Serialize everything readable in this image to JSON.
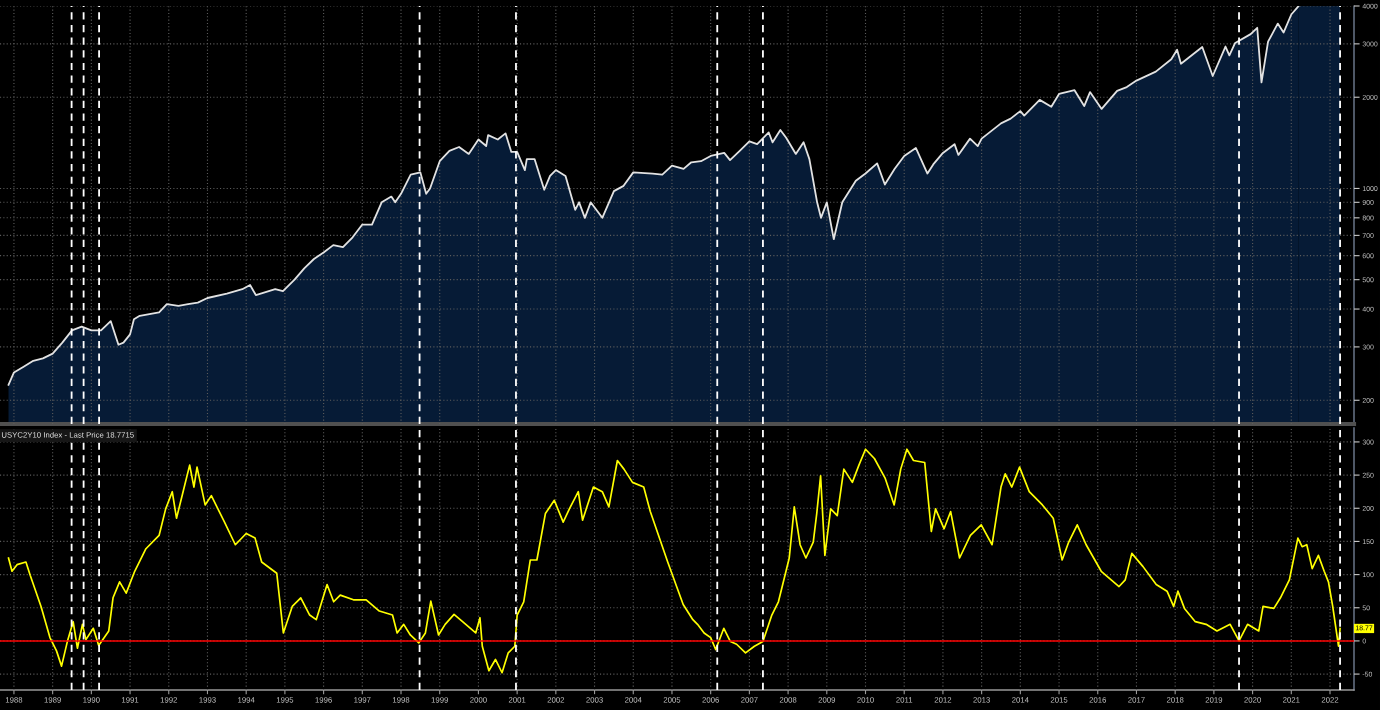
{
  "chart_data": [
    {
      "type": "area",
      "log": true,
      "grid": true,
      "tick_labels": "y",
      "color": "#061b36",
      "x": [
        1987.86,
        1988.0,
        1988.25,
        1988.5,
        1988.75,
        1989.0,
        1989.25,
        1989.5,
        1989.75,
        1990.0,
        1990.25,
        1990.5,
        1990.7,
        1990.83,
        1991.0,
        1991.1,
        1991.25,
        1991.5,
        1991.75,
        1991.95,
        1992.25,
        1992.5,
        1992.75,
        1993.0,
        1993.5,
        1993.9,
        1994.1,
        1994.25,
        1994.5,
        1994.75,
        1994.95,
        1995.25,
        1995.5,
        1995.75,
        1996.0,
        1996.25,
        1996.5,
        1996.75,
        1997.0,
        1997.25,
        1997.5,
        1997.75,
        1997.85,
        1998.0,
        1998.25,
        1998.5,
        1998.65,
        1998.75,
        1999.0,
        1999.25,
        1999.5,
        1999.75,
        2000.0,
        2000.2,
        2000.25,
        2000.5,
        2000.7,
        2000.85,
        2001.0,
        2001.2,
        2001.25,
        2001.45,
        2001.7,
        2001.85,
        2002.0,
        2002.25,
        2002.5,
        2002.6,
        2002.75,
        2002.9,
        2003.2,
        2003.5,
        2003.75,
        2004.0,
        2004.5,
        2004.75,
        2005.0,
        2005.3,
        2005.5,
        2005.75,
        2006.0,
        2006.35,
        2006.5,
        2006.75,
        2007.0,
        2007.2,
        2007.5,
        2007.6,
        2007.8,
        2007.95,
        2008.2,
        2008.4,
        2008.55,
        2008.75,
        2008.85,
        2009.0,
        2009.18,
        2009.4,
        2009.75,
        2010.0,
        2010.3,
        2010.5,
        2010.75,
        2011.0,
        2011.3,
        2011.6,
        2011.75,
        2012.0,
        2012.3,
        2012.4,
        2012.7,
        2012.9,
        2013.0,
        2013.5,
        2013.75,
        2014.0,
        2014.1,
        2014.5,
        2014.8,
        2015.0,
        2015.4,
        2015.65,
        2015.8,
        2016.1,
        2016.5,
        2016.75,
        2017.0,
        2017.5,
        2017.9,
        2018.05,
        2018.15,
        2018.7,
        2018.97,
        2019.3,
        2019.4,
        2019.55,
        2019.95,
        2020.12,
        2020.23,
        2020.4,
        2020.65,
        2020.8,
        2021.0,
        2021.19
      ],
      "series": [
        {
          "color": "#e2e2e2",
          "values": [
            225,
            247,
            258,
            270,
            275,
            285,
            310,
            340,
            350,
            340,
            340,
            365,
            305,
            310,
            330,
            370,
            380,
            385,
            390,
            415,
            410,
            415,
            420,
            435,
            450,
            465,
            480,
            445,
            455,
            465,
            458,
            500,
            545,
            585,
            615,
            650,
            640,
            690,
            760,
            760,
            900,
            940,
            900,
            960,
            1110,
            1130,
            960,
            1000,
            1230,
            1330,
            1370,
            1300,
            1450,
            1380,
            1500,
            1450,
            1520,
            1320,
            1320,
            1150,
            1250,
            1250,
            990,
            1100,
            1150,
            1100,
            850,
            900,
            800,
            900,
            800,
            980,
            1020,
            1130,
            1120,
            1110,
            1190,
            1160,
            1220,
            1230,
            1280,
            1310,
            1240,
            1330,
            1430,
            1400,
            1530,
            1420,
            1560,
            1470,
            1300,
            1420,
            1250,
            900,
            800,
            900,
            680,
            900,
            1060,
            1120,
            1210,
            1030,
            1160,
            1280,
            1360,
            1120,
            1200,
            1310,
            1400,
            1290,
            1460,
            1380,
            1460,
            1640,
            1700,
            1800,
            1740,
            1960,
            1860,
            2050,
            2110,
            1870,
            2080,
            1830,
            2100,
            2160,
            2270,
            2430,
            2670,
            2870,
            2580,
            2930,
            2350,
            2940,
            2750,
            3020,
            3230,
            3390,
            2240,
            3050,
            3500,
            3270,
            3750,
            4000
          ]
        }
      ],
      "xlim": [
        1987.64,
        2022.62
      ],
      "xticks": [
        1988,
        1989,
        1990,
        1991,
        1992,
        1993,
        1994,
        1995,
        1996,
        1997,
        1998,
        1999,
        2000,
        2001,
        2002,
        2003,
        2004,
        2005,
        2006,
        2007,
        2008,
        2009,
        2010,
        2011,
        2012,
        2013,
        2014,
        2015,
        2016,
        2017,
        2018,
        2019,
        2020,
        2021,
        2022
      ],
      "ylim": [
        167,
        4000
      ],
      "yticks": [
        200,
        300,
        400,
        500,
        600,
        700,
        800,
        900,
        1000,
        2000,
        3000,
        4000
      ],
      "bands": [
        {
          "axis": "x",
          "from": 2021.19,
          "to": 2022.26,
          "color": "#061b36"
        }
      ],
      "ref_lines": [
        {
          "axis": "x",
          "value": 1989.49,
          "color": "#ffffff",
          "line_style": "dashed"
        },
        {
          "axis": "x",
          "value": 1989.8,
          "color": "#ffffff",
          "line_style": "dashed"
        },
        {
          "axis": "x",
          "value": 1990.2,
          "color": "#ffffff",
          "line_style": "dashed"
        },
        {
          "axis": "x",
          "value": 1998.48,
          "color": "#ffffff",
          "line_style": "dashed"
        },
        {
          "axis": "x",
          "value": 2000.97,
          "color": "#ffffff",
          "line_style": "dashed"
        },
        {
          "axis": "x",
          "value": 2006.17,
          "color": "#ffffff",
          "line_style": "dashed"
        },
        {
          "axis": "x",
          "value": 2007.35,
          "color": "#ffffff",
          "line_style": "dashed"
        },
        {
          "axis": "x",
          "value": 2019.65,
          "color": "#ffffff",
          "line_style": "dashed"
        },
        {
          "axis": "x",
          "value": 2022.26,
          "color": "#ffffff",
          "line_style": "dashed"
        }
      ]
    },
    {
      "type": "line",
      "title": "USYC2Y10 Index - Last Price 18.7715",
      "grid": true,
      "color": "#ffff00",
      "x": [
        1987.86,
        1987.95,
        1988.08,
        1988.31,
        1988.42,
        1988.7,
        1988.93,
        1989.1,
        1989.23,
        1989.38,
        1989.53,
        1989.64,
        1989.77,
        1989.86,
        1990.05,
        1990.19,
        1990.45,
        1990.56,
        1990.73,
        1990.9,
        1991.12,
        1991.41,
        1991.75,
        1991.92,
        1992.09,
        1992.2,
        1992.37,
        1992.54,
        1992.65,
        1992.73,
        1992.94,
        1993.1,
        1993.44,
        1993.72,
        1994.0,
        1994.23,
        1994.4,
        1994.79,
        1994.96,
        1995.19,
        1995.41,
        1995.64,
        1995.81,
        1996.09,
        1996.26,
        1996.43,
        1996.77,
        1997.1,
        1997.44,
        1997.78,
        1997.9,
        1998.07,
        1998.24,
        1998.46,
        1998.63,
        1998.77,
        1998.97,
        1999.14,
        1999.37,
        1999.59,
        1999.93,
        2000.04,
        2000.1,
        2000.27,
        2000.44,
        2000.61,
        2000.77,
        2000.94,
        2001.0,
        2001.17,
        2001.34,
        2001.51,
        2001.73,
        2001.96,
        2002.19,
        2002.35,
        2002.58,
        2002.69,
        2002.97,
        2003.2,
        2003.37,
        2003.59,
        2003.76,
        2003.98,
        2004.27,
        2004.44,
        2004.89,
        2005.12,
        2005.29,
        2005.54,
        2005.66,
        2005.83,
        2006.0,
        2006.13,
        2006.34,
        2006.51,
        2006.67,
        2006.9,
        2007.13,
        2007.35,
        2007.58,
        2007.75,
        2007.92,
        2008.03,
        2008.16,
        2008.31,
        2008.46,
        2008.65,
        2008.74,
        2008.84,
        2008.95,
        2009.1,
        2009.27,
        2009.44,
        2009.66,
        2009.83,
        2010.0,
        2010.23,
        2010.51,
        2010.74,
        2010.91,
        2011.07,
        2011.24,
        2011.53,
        2011.7,
        2011.81,
        2012.03,
        2012.2,
        2012.43,
        2012.71,
        2012.99,
        2013.27,
        2013.5,
        2013.61,
        2013.78,
        2013.98,
        2014.23,
        2014.57,
        2014.85,
        2015.08,
        2015.25,
        2015.47,
        2015.7,
        2016.09,
        2016.55,
        2016.71,
        2016.88,
        2017.17,
        2017.51,
        2017.79,
        2017.96,
        2018.07,
        2018.24,
        2018.52,
        2018.8,
        2019.08,
        2019.42,
        2019.65,
        2019.87,
        2020.16,
        2020.27,
        2020.55,
        2020.72,
        2020.95,
        2021.17,
        2021.28,
        2021.4,
        2021.54,
        2021.7,
        2021.85,
        2021.96,
        2022.07,
        2022.22,
        2022.26
      ],
      "values": [
        125,
        105,
        115,
        119,
        99,
        52,
        5,
        -15,
        -38,
        -1,
        29,
        -11,
        25,
        2,
        19,
        -7,
        15,
        65,
        89,
        72,
        105,
        139,
        159,
        199,
        225,
        185,
        225,
        265,
        232,
        262,
        205,
        219,
        179,
        145,
        162,
        155,
        119,
        102,
        12,
        52,
        65,
        39,
        32,
        85,
        59,
        69,
        62,
        62,
        45,
        39,
        12,
        25,
        9,
        -3,
        12,
        60,
        9,
        25,
        40,
        29,
        12,
        35,
        -8,
        -45,
        -28,
        -48,
        -18,
        -8,
        39,
        59,
        122,
        122,
        192,
        212,
        179,
        199,
        225,
        182,
        232,
        225,
        202,
        272,
        259,
        239,
        232,
        195,
        119,
        82,
        55,
        32,
        25,
        12,
        5,
        -13,
        19,
        -1,
        -5,
        -18,
        -8,
        -1,
        39,
        59,
        99,
        125,
        202,
        145,
        125,
        149,
        192,
        249,
        129,
        199,
        189,
        259,
        239,
        265,
        289,
        275,
        245,
        205,
        259,
        289,
        272,
        269,
        165,
        199,
        169,
        195,
        125,
        159,
        175,
        145,
        232,
        252,
        232,
        262,
        225,
        205,
        185,
        122,
        149,
        175,
        145,
        105,
        82,
        92,
        132,
        112,
        85,
        75,
        52,
        75,
        49,
        29,
        25,
        15,
        25,
        0,
        25,
        15,
        52,
        49,
        65,
        92,
        155,
        142,
        145,
        109,
        129,
        105,
        89,
        52,
        -8,
        18.77
      ],
      "xlim": [
        1987.64,
        2022.62
      ],
      "xticks": [
        1988,
        1989,
        1990,
        1991,
        1992,
        1993,
        1994,
        1995,
        1996,
        1997,
        1998,
        1999,
        2000,
        2001,
        2002,
        2003,
        2004,
        2005,
        2006,
        2007,
        2008,
        2009,
        2010,
        2011,
        2012,
        2013,
        2014,
        2015,
        2016,
        2017,
        2018,
        2019,
        2020,
        2021,
        2022
      ],
      "ylim": [
        -74,
        321
      ],
      "yticks": [
        -50,
        0,
        50,
        100,
        150,
        200,
        250,
        300
      ],
      "annotations": [
        {
          "text": "18.77",
          "x": 2022.26,
          "y": 18.77
        }
      ],
      "ref_lines": [
        {
          "axis": "y",
          "value": 0,
          "color": "#ff0000",
          "line_style": "solid"
        },
        {
          "axis": "x",
          "value": 1989.49,
          "color": "#ffffff",
          "line_style": "dashed"
        },
        {
          "axis": "x",
          "value": 1989.8,
          "color": "#ffffff",
          "line_style": "dashed"
        },
        {
          "axis": "x",
          "value": 1990.2,
          "color": "#ffffff",
          "line_style": "dashed"
        },
        {
          "axis": "x",
          "value": 1998.48,
          "color": "#ffffff",
          "line_style": "dashed"
        },
        {
          "axis": "x",
          "value": 2000.97,
          "color": "#ffffff",
          "line_style": "dashed"
        },
        {
          "axis": "x",
          "value": 2006.17,
          "color": "#ffffff",
          "line_style": "dashed"
        },
        {
          "axis": "x",
          "value": 2007.35,
          "color": "#ffffff",
          "line_style": "dashed"
        },
        {
          "axis": "x",
          "value": 2019.65,
          "color": "#ffffff",
          "line_style": "dashed"
        },
        {
          "axis": "x",
          "value": 2022.26,
          "color": "#ffffff",
          "line_style": "dashed"
        }
      ]
    }
  ]
}
